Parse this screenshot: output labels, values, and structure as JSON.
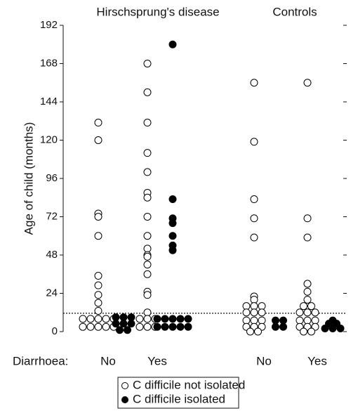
{
  "chart_data": {
    "type": "dotplot",
    "groups": [
      {
        "name": "Hirschsprung's disease",
        "categories": [
          "No",
          "Yes"
        ]
      },
      {
        "name": "Controls",
        "categories": [
          "No",
          "Yes"
        ]
      }
    ],
    "x_label": "Diarrhoea:",
    "y_label": "Age of child (months)",
    "ylim": [
      0,
      192
    ],
    "yticks": [
      0,
      24,
      48,
      72,
      96,
      120,
      144,
      168,
      192
    ],
    "mirror_ticks": true,
    "reference_line": 11.5,
    "series": [
      {
        "name": "C difficile not isolated",
        "color": "#000000",
        "marker": "open",
        "values": [
          [
            131,
            120,
            74,
            72,
            60,
            35,
            29,
            23,
            18,
            13,
            8,
            8,
            8,
            8,
            8,
            3,
            3,
            3,
            3,
            3
          ],
          [
            168,
            150,
            131,
            112,
            100,
            87,
            84,
            72,
            60,
            52,
            48,
            47,
            42,
            36,
            25,
            23,
            12,
            8,
            8,
            8,
            3,
            3,
            3
          ],
          [
            156,
            119,
            83,
            71,
            59,
            22,
            20,
            16,
            16,
            16,
            12,
            12,
            12,
            7,
            7,
            7,
            3,
            3,
            3,
            0,
            0
          ],
          [
            156,
            71,
            59,
            30,
            25,
            20,
            16,
            16,
            12,
            12,
            12,
            7,
            7,
            7,
            3,
            3,
            3,
            0,
            0
          ]
        ]
      },
      {
        "name": "C difficile isolated",
        "color": "#000000",
        "marker": "filled",
        "values": [
          [
            9,
            9,
            9,
            5,
            5,
            5,
            1,
            1
          ],
          [
            180,
            83,
            71,
            68,
            60,
            54,
            51,
            8,
            8,
            8,
            8,
            8,
            3,
            3,
            3,
            3,
            3
          ],
          [
            7,
            7,
            3,
            3
          ],
          [
            7,
            5,
            5,
            2,
            2,
            2
          ]
        ]
      }
    ]
  }
}
